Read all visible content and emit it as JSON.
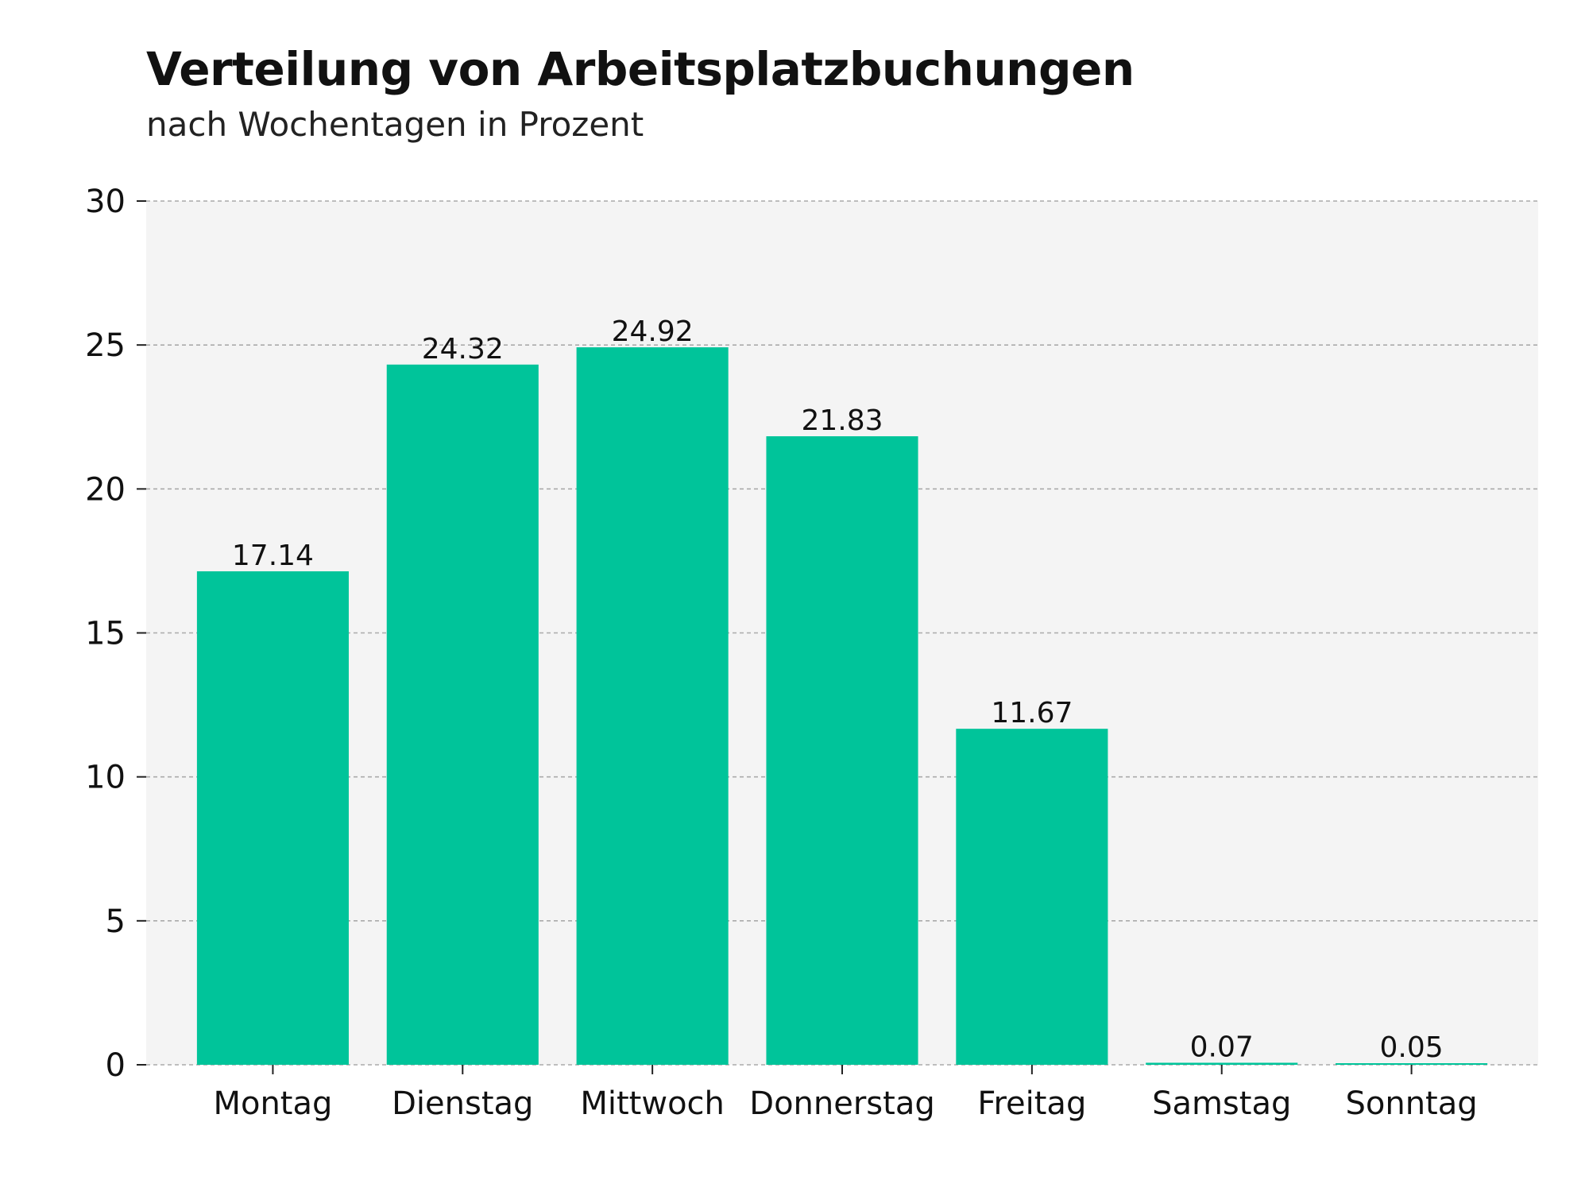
{
  "chart_data": {
    "type": "bar",
    "title": "Verteilung von Arbeitsplatzbuchungen",
    "subtitle": "nach Wochentagen in Prozent",
    "xlabel": "",
    "ylabel": "",
    "categories": [
      "Montag",
      "Dienstag",
      "Mittwoch",
      "Donnerstag",
      "Freitag",
      "Samstag",
      "Sonntag"
    ],
    "values": [
      17.14,
      24.32,
      24.92,
      21.83,
      11.67,
      0.07,
      0.05
    ],
    "value_labels": [
      "17.14",
      "24.32",
      "24.92",
      "21.83",
      "11.67",
      "0.07",
      "0.05"
    ],
    "ylim": [
      0,
      30
    ],
    "yticks": [
      0,
      5,
      10,
      15,
      20,
      25,
      30
    ],
    "grid": true,
    "legend": "none",
    "colors": {
      "bar": "#00c49a",
      "plot_background": "#f4f4f4",
      "grid": "#aaaaaa",
      "text": "#111111"
    }
  }
}
